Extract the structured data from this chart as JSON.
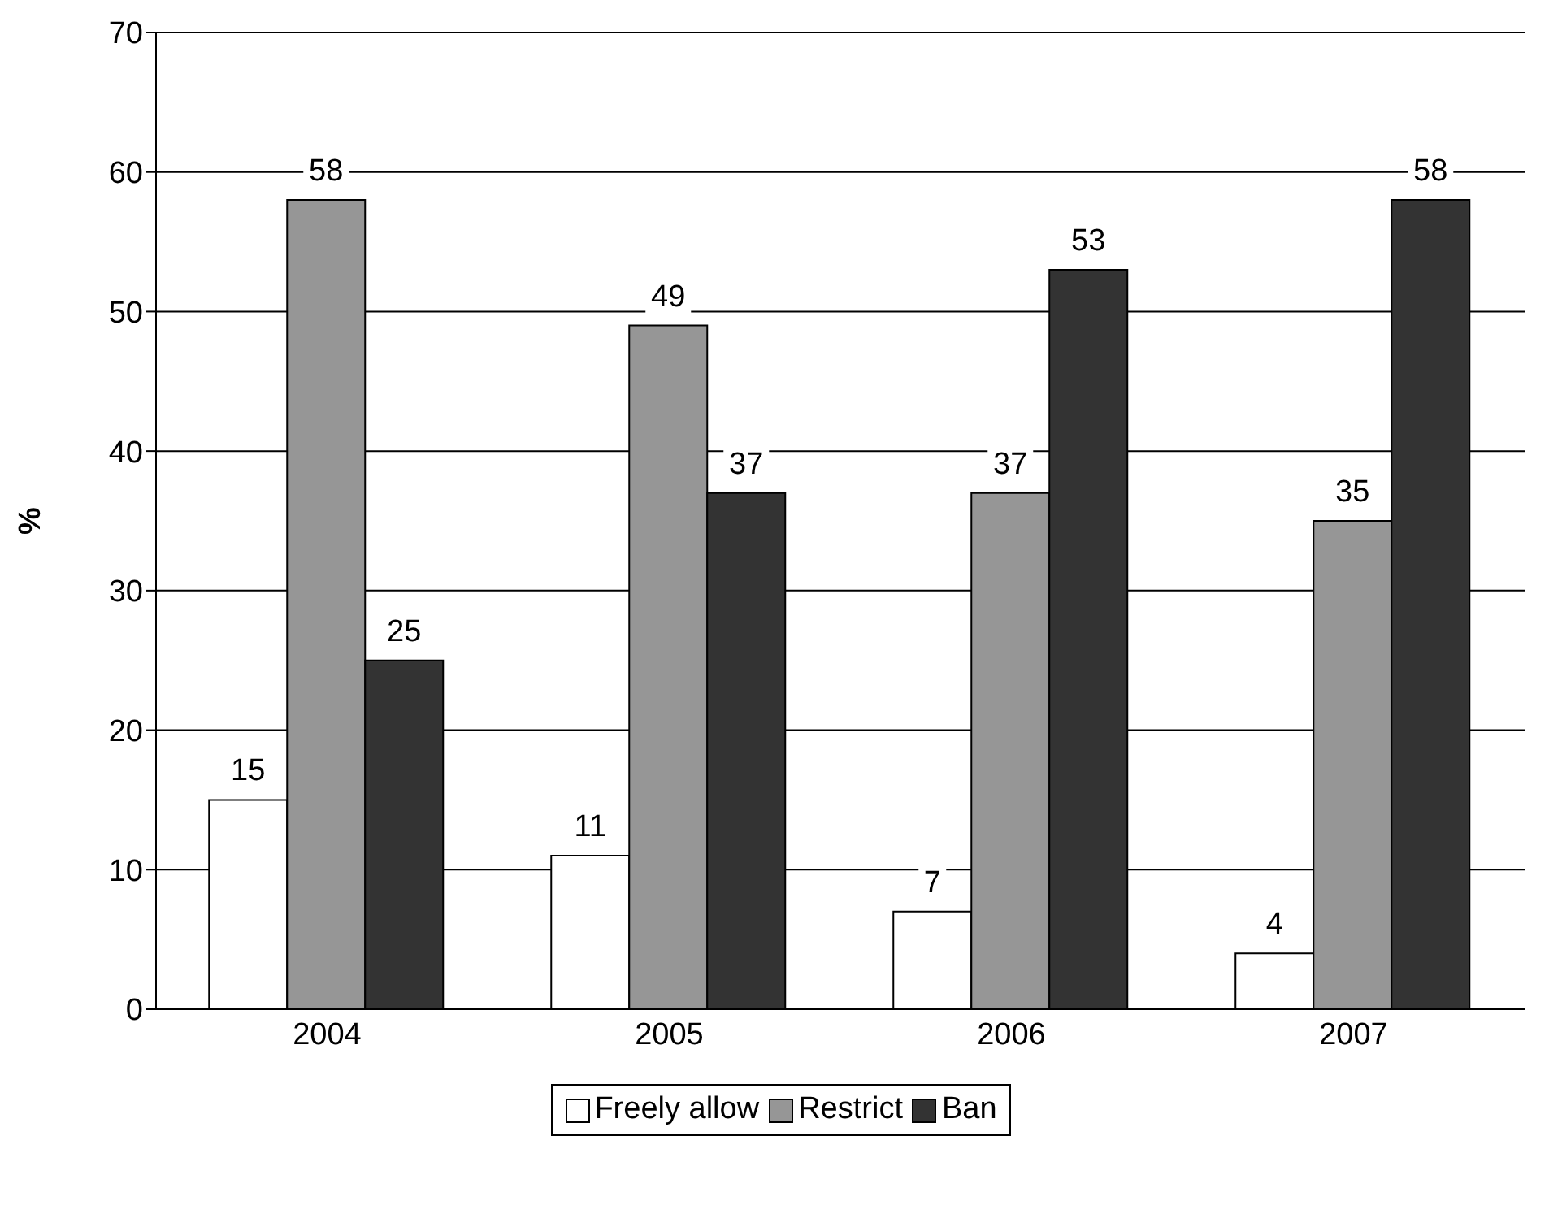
{
  "chart_data": {
    "type": "bar",
    "ylabel": "%",
    "categories": [
      "2004",
      "2005",
      "2006",
      "2007"
    ],
    "series": [
      {
        "name": "Freely allow",
        "color": "#ffffff",
        "values": [
          15,
          11,
          7,
          4
        ]
      },
      {
        "name": "Restrict",
        "color": "#969696",
        "values": [
          58,
          49,
          37,
          35
        ]
      },
      {
        "name": "Ban",
        "color": "#333333",
        "values": [
          25,
          37,
          53,
          58
        ]
      }
    ],
    "ylim": [
      0,
      70
    ],
    "yticks": [
      0,
      10,
      20,
      30,
      40,
      50,
      60,
      70
    ],
    "grid": "y",
    "legend": "bottom",
    "data_labels": true
  }
}
